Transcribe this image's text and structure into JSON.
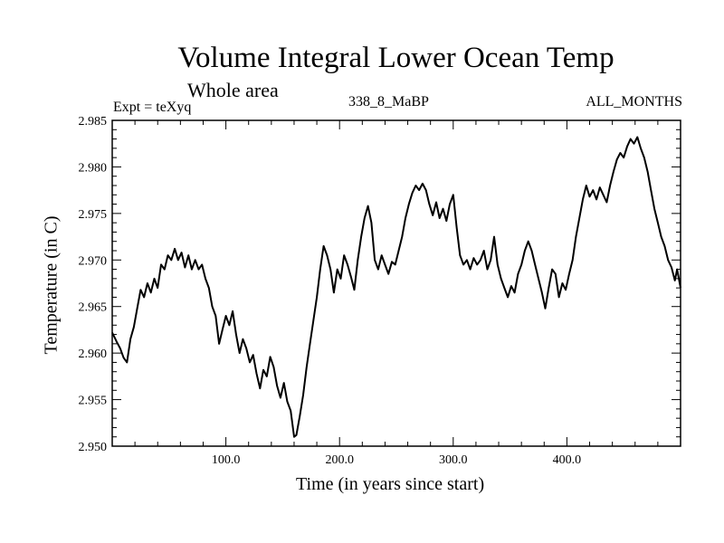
{
  "header": {
    "title": "Volume Integral Lower Ocean Temp",
    "subtitle": "Whole area",
    "expt": "Expt = teXyq",
    "center_label": "338_8_MaBP",
    "right_label": "ALL_MONTHS"
  },
  "chart_data": {
    "type": "line",
    "title": "Volume Integral Lower Ocean Temp",
    "xlabel": "Time (in years since start)",
    "ylabel": "Temperature (in C)",
    "xlim": [
      0,
      500
    ],
    "ylim": [
      2.95,
      2.985
    ],
    "x_ticks": [
      "100.0",
      "200.0",
      "300.0",
      "400.0"
    ],
    "y_ticks": [
      "2.950",
      "2.955",
      "2.960",
      "2.965",
      "2.970",
      "2.975",
      "2.980",
      "2.985"
    ],
    "grid": false,
    "series": [
      {
        "color": "#000000",
        "points": [
          [
            0,
            2.9622
          ],
          [
            4,
            2.9612
          ],
          [
            7,
            2.9605
          ],
          [
            10,
            2.9595
          ],
          [
            13,
            2.959
          ],
          [
            16,
            2.9615
          ],
          [
            19,
            2.9628
          ],
          [
            22,
            2.9648
          ],
          [
            25,
            2.9668
          ],
          [
            28,
            2.966
          ],
          [
            31,
            2.9675
          ],
          [
            34,
            2.9665
          ],
          [
            37,
            2.968
          ],
          [
            40,
            2.967
          ],
          [
            43,
            2.9695
          ],
          [
            46,
            2.969
          ],
          [
            49,
            2.9705
          ],
          [
            52,
            2.97
          ],
          [
            55,
            2.9712
          ],
          [
            58,
            2.97
          ],
          [
            61,
            2.9708
          ],
          [
            64,
            2.9692
          ],
          [
            67,
            2.9705
          ],
          [
            70,
            2.969
          ],
          [
            73,
            2.97
          ],
          [
            76,
            2.969
          ],
          [
            79,
            2.9695
          ],
          [
            82,
            2.968
          ],
          [
            85,
            2.967
          ],
          [
            88,
            2.965
          ],
          [
            91,
            2.964
          ],
          [
            94,
            2.961
          ],
          [
            97,
            2.9625
          ],
          [
            100,
            2.964
          ],
          [
            103,
            2.963
          ],
          [
            106,
            2.9645
          ],
          [
            109,
            2.962
          ],
          [
            112,
            2.96
          ],
          [
            115,
            2.9615
          ],
          [
            118,
            2.9605
          ],
          [
            121,
            2.959
          ],
          [
            124,
            2.9598
          ],
          [
            127,
            2.9578
          ],
          [
            130,
            2.9562
          ],
          [
            133,
            2.9582
          ],
          [
            136,
            2.9575
          ],
          [
            139,
            2.9596
          ],
          [
            142,
            2.9585
          ],
          [
            145,
            2.9565
          ],
          [
            148,
            2.9552
          ],
          [
            151,
            2.9568
          ],
          [
            154,
            2.9548
          ],
          [
            157,
            2.9538
          ],
          [
            160,
            2.951
          ],
          [
            162,
            2.9512
          ],
          [
            165,
            2.9532
          ],
          [
            168,
            2.9555
          ],
          [
            171,
            2.9585
          ],
          [
            174,
            2.961
          ],
          [
            177,
            2.9635
          ],
          [
            180,
            2.966
          ],
          [
            183,
            2.969
          ],
          [
            186,
            2.9715
          ],
          [
            189,
            2.9705
          ],
          [
            192,
            2.969
          ],
          [
            195,
            2.9665
          ],
          [
            198,
            2.969
          ],
          [
            201,
            2.968
          ],
          [
            204,
            2.9705
          ],
          [
            207,
            2.9695
          ],
          [
            210,
            2.9682
          ],
          [
            213,
            2.9668
          ],
          [
            216,
            2.97
          ],
          [
            219,
            2.9725
          ],
          [
            222,
            2.9745
          ],
          [
            225,
            2.9758
          ],
          [
            228,
            2.974
          ],
          [
            231,
            2.97
          ],
          [
            234,
            2.969
          ],
          [
            237,
            2.9705
          ],
          [
            240,
            2.9695
          ],
          [
            243,
            2.9685
          ],
          [
            246,
            2.9698
          ],
          [
            249,
            2.9695
          ],
          [
            252,
            2.971
          ],
          [
            255,
            2.9725
          ],
          [
            258,
            2.9745
          ],
          [
            261,
            2.976
          ],
          [
            264,
            2.9772
          ],
          [
            267,
            2.978
          ],
          [
            270,
            2.9775
          ],
          [
            273,
            2.9782
          ],
          [
            276,
            2.9775
          ],
          [
            279,
            2.976
          ],
          [
            282,
            2.9748
          ],
          [
            285,
            2.9762
          ],
          [
            288,
            2.9745
          ],
          [
            291,
            2.9755
          ],
          [
            294,
            2.9742
          ],
          [
            297,
            2.976
          ],
          [
            300,
            2.977
          ],
          [
            303,
            2.9735
          ],
          [
            306,
            2.9705
          ],
          [
            309,
            2.9695
          ],
          [
            312,
            2.97
          ],
          [
            315,
            2.969
          ],
          [
            318,
            2.9702
          ],
          [
            321,
            2.9695
          ],
          [
            324,
            2.97
          ],
          [
            327,
            2.971
          ],
          [
            330,
            2.969
          ],
          [
            333,
            2.97
          ],
          [
            336,
            2.9725
          ],
          [
            339,
            2.9695
          ],
          [
            342,
            2.968
          ],
          [
            345,
            2.967
          ],
          [
            348,
            2.966
          ],
          [
            351,
            2.9672
          ],
          [
            354,
            2.9665
          ],
          [
            357,
            2.9685
          ],
          [
            360,
            2.9695
          ],
          [
            363,
            2.971
          ],
          [
            366,
            2.972
          ],
          [
            369,
            2.971
          ],
          [
            372,
            2.9695
          ],
          [
            375,
            2.968
          ],
          [
            378,
            2.9665
          ],
          [
            381,
            2.9648
          ],
          [
            384,
            2.967
          ],
          [
            387,
            2.969
          ],
          [
            390,
            2.9685
          ],
          [
            393,
            2.966
          ],
          [
            396,
            2.9675
          ],
          [
            399,
            2.9668
          ],
          [
            402,
            2.9685
          ],
          [
            405,
            2.97
          ],
          [
            408,
            2.9725
          ],
          [
            411,
            2.9745
          ],
          [
            414,
            2.9765
          ],
          [
            417,
            2.978
          ],
          [
            420,
            2.9768
          ],
          [
            423,
            2.9775
          ],
          [
            426,
            2.9765
          ],
          [
            429,
            2.9778
          ],
          [
            432,
            2.977
          ],
          [
            435,
            2.9762
          ],
          [
            438,
            2.978
          ],
          [
            441,
            2.9795
          ],
          [
            444,
            2.9808
          ],
          [
            447,
            2.9815
          ],
          [
            450,
            2.981
          ],
          [
            453,
            2.9822
          ],
          [
            456,
            2.983
          ],
          [
            459,
            2.9825
          ],
          [
            462,
            2.9832
          ],
          [
            465,
            2.982
          ],
          [
            468,
            2.981
          ],
          [
            471,
            2.9795
          ],
          [
            474,
            2.9775
          ],
          [
            477,
            2.9755
          ],
          [
            480,
            2.974
          ],
          [
            483,
            2.9725
          ],
          [
            486,
            2.9715
          ],
          [
            489,
            2.97
          ],
          [
            492,
            2.9692
          ],
          [
            495,
            2.9678
          ],
          [
            497,
            2.969
          ],
          [
            500,
            2.967
          ]
        ]
      }
    ]
  }
}
